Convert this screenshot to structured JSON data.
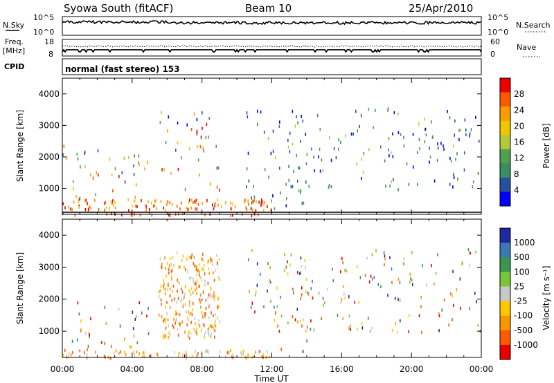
{
  "header": {
    "station": "Syowa South (fitACF)",
    "beam": "Beam 10",
    "date": "25/Apr/2010"
  },
  "top_panels": {
    "nsky_label": "N.Sky",
    "nsky_ticks": [
      "10^5",
      "10^0"
    ],
    "nsearch_label": "N.Search",
    "nsearch_ticks": [
      "10^5",
      "10^0"
    ],
    "freq_label": "Freq.",
    "freq_unit": "[MHz]",
    "freq_ticks": [
      "18",
      "8"
    ],
    "nave_label": "Nave",
    "nave_ticks": [
      "60",
      "0"
    ],
    "cpid_label": "CPID",
    "cpid_text": "normal (fast stereo) 153"
  },
  "chart_data": [
    {
      "type": "heatmap",
      "name": "power",
      "ylabel": "Slant Range [km]",
      "xlabel": "Time UT",
      "xlim": [
        "00:00",
        "00:00"
      ],
      "ylim": [
        180,
        4500
      ],
      "y_ticks": [
        "4000",
        "3000",
        "2000",
        "1000"
      ],
      "x_ticks": [
        "00:00",
        "04:00",
        "08:00",
        "12:00",
        "16:00",
        "20:00",
        "00:00"
      ],
      "colorbar": {
        "label": "Power [dB]",
        "ticks": [
          "28",
          "24",
          "20",
          "16",
          "12",
          "8",
          "4"
        ],
        "colors": [
          "#ee0000",
          "#ff5a00",
          "#ff9a00",
          "#f0c800",
          "#b4c83c",
          "#50a050",
          "#3c8c64",
          "#2850a0",
          "#0000ff"
        ]
      },
      "scatter_regions": [
        {
          "t_start": 0.0,
          "t_end": 11.9,
          "r_start": 180,
          "r_end": 260,
          "level": "high"
        },
        {
          "t_start": 0.0,
          "t_end": 12.0,
          "r_start": 350,
          "r_end": 700,
          "level": "mid-high"
        },
        {
          "t_start": 0.0,
          "t_end": 5.0,
          "r_start": 700,
          "r_end": 2400,
          "level": "mixed"
        },
        {
          "t_start": 5.5,
          "t_end": 9.0,
          "r_start": 900,
          "r_end": 3500,
          "level": "mixed"
        },
        {
          "t_start": 10.5,
          "t_end": 14.0,
          "r_start": 400,
          "r_end": 3600,
          "level": "low"
        },
        {
          "t_start": 13.0,
          "t_end": 24.0,
          "r_start": 1000,
          "r_end": 3600,
          "level": "low"
        }
      ]
    },
    {
      "type": "heatmap",
      "name": "velocity",
      "ylabel": "Slant Range [km]",
      "xlabel": "Time UT",
      "xlim": [
        "00:00",
        "00:00"
      ],
      "ylim": [
        180,
        4500
      ],
      "y_ticks": [
        "4000",
        "3000",
        "2000",
        "1000"
      ],
      "x_ticks": [
        "00:00",
        "04:00",
        "08:00",
        "12:00",
        "16:00",
        "20:00",
        "00:00"
      ],
      "colorbar": {
        "label": "Velocity [m s⁻¹]",
        "ticks": [
          "1000",
          "500",
          "100",
          "25",
          "-25",
          "-100",
          "-500",
          "-1000"
        ],
        "colors": [
          "#1e28a0",
          "#3c78b4",
          "#3c9650",
          "#78c83c",
          "#c8c8c8",
          "#ffc800",
          "#ff9600",
          "#ff5a00",
          "#e60000"
        ]
      },
      "scatter_regions": [
        {
          "t_start": 0.0,
          "t_end": 11.9,
          "r_start": 200,
          "r_end": 450,
          "level": "negative"
        },
        {
          "t_start": 0.0,
          "t_end": 5.0,
          "r_start": 450,
          "r_end": 2000,
          "level": "mixed"
        },
        {
          "t_start": 5.5,
          "t_end": 9.0,
          "r_start": 800,
          "r_end": 3500,
          "level": "negative"
        },
        {
          "t_start": 10.5,
          "t_end": 14.0,
          "r_start": 400,
          "r_end": 3600,
          "level": "mixed"
        },
        {
          "t_start": 13.0,
          "t_end": 24.0,
          "r_start": 1000,
          "r_end": 3600,
          "level": "mixed"
        }
      ]
    }
  ]
}
